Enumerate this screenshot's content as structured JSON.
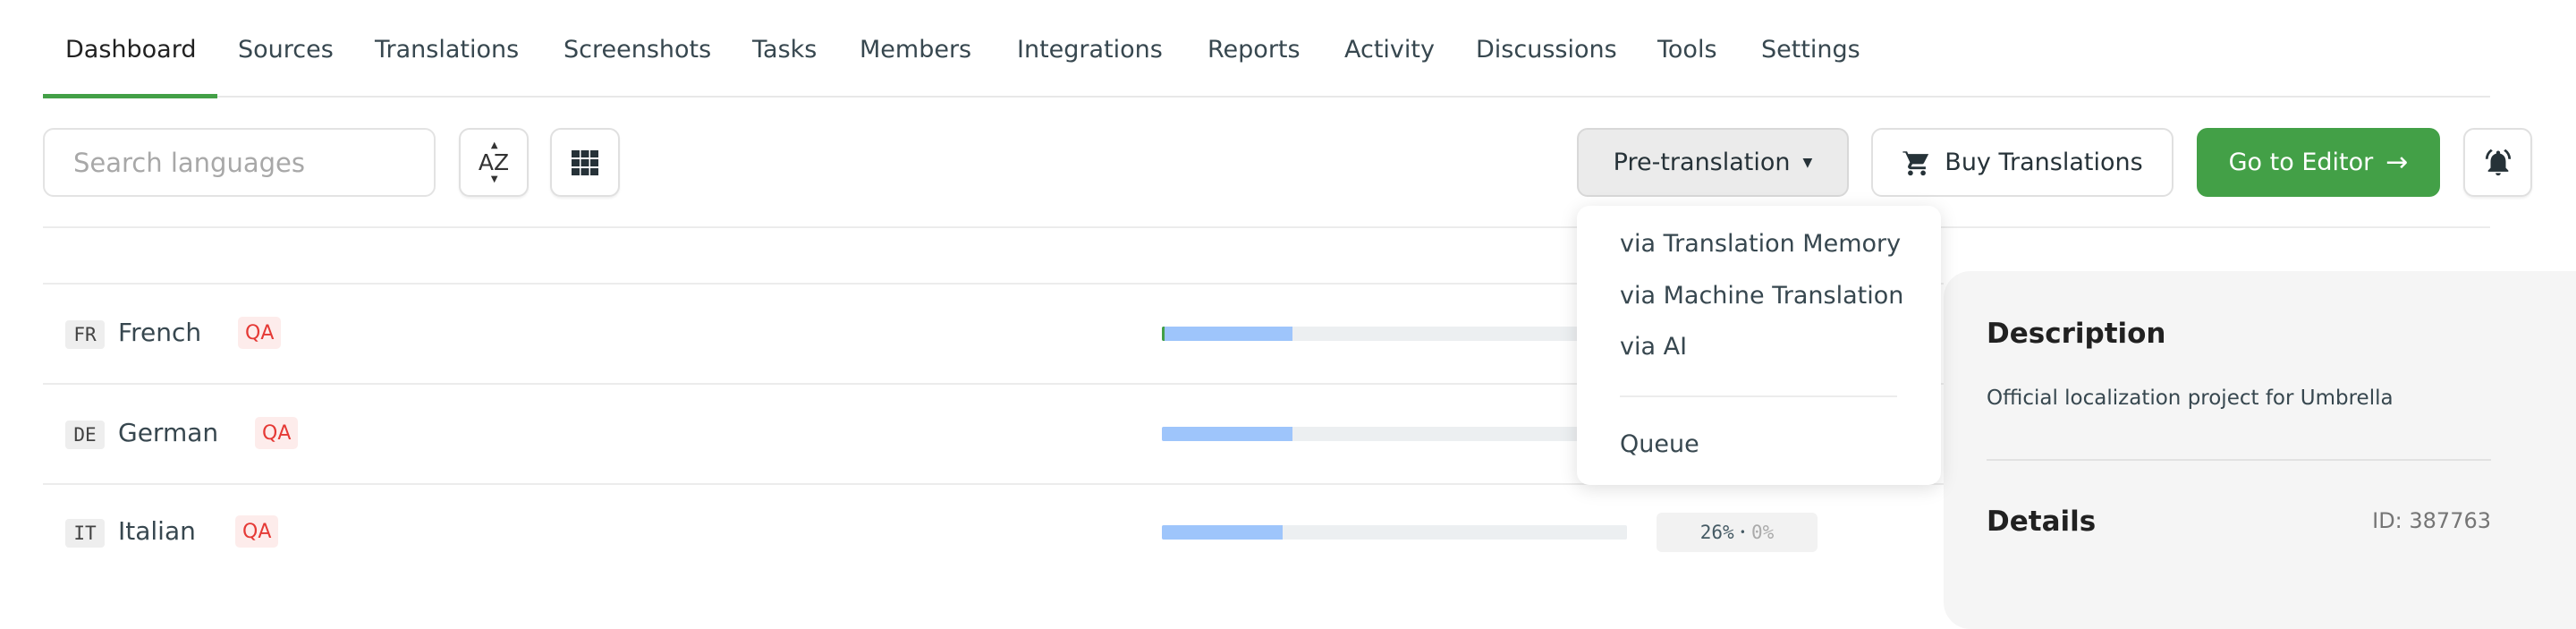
{
  "tabs": [
    {
      "label": "Dashboard",
      "active": true
    },
    {
      "label": "Sources"
    },
    {
      "label": "Translations"
    },
    {
      "label": "Screenshots"
    },
    {
      "label": "Tasks"
    },
    {
      "label": "Members"
    },
    {
      "label": "Integrations"
    },
    {
      "label": "Reports"
    },
    {
      "label": "Activity"
    },
    {
      "label": "Discussions"
    },
    {
      "label": "Tools"
    },
    {
      "label": "Settings"
    }
  ],
  "toolbar": {
    "search_placeholder": "Search languages",
    "sort_icon": "sort-az-icon",
    "grid_icon": "grid-icon",
    "pretranslation_label": "Pre-translation",
    "buy_label": "Buy Translations",
    "editor_label": "Go to Editor",
    "bell_icon": "bell-icon"
  },
  "pretranslation_menu": {
    "items": [
      "via Translation Memory",
      "via Machine Translation",
      "via AI"
    ],
    "queue": "Queue"
  },
  "languages": [
    {
      "code": "FR",
      "name": "French",
      "badge": "QA",
      "translated": 28,
      "approved": 0.5
    },
    {
      "code": "DE",
      "name": "German",
      "badge": "QA",
      "translated": 28,
      "approved": 0
    },
    {
      "code": "IT",
      "name": "Italian",
      "badge": "QA",
      "translated": 26,
      "approved": 0,
      "translated_label": "26%",
      "approved_label": "0%"
    }
  ],
  "panel": {
    "description_title": "Description",
    "description": "Official localization project for Umbrella",
    "details_title": "Details",
    "id_label": "ID: 387763"
  },
  "colors": {
    "accent": "#43a047",
    "progress": "#9ec5fb",
    "qa": "#e53935"
  }
}
